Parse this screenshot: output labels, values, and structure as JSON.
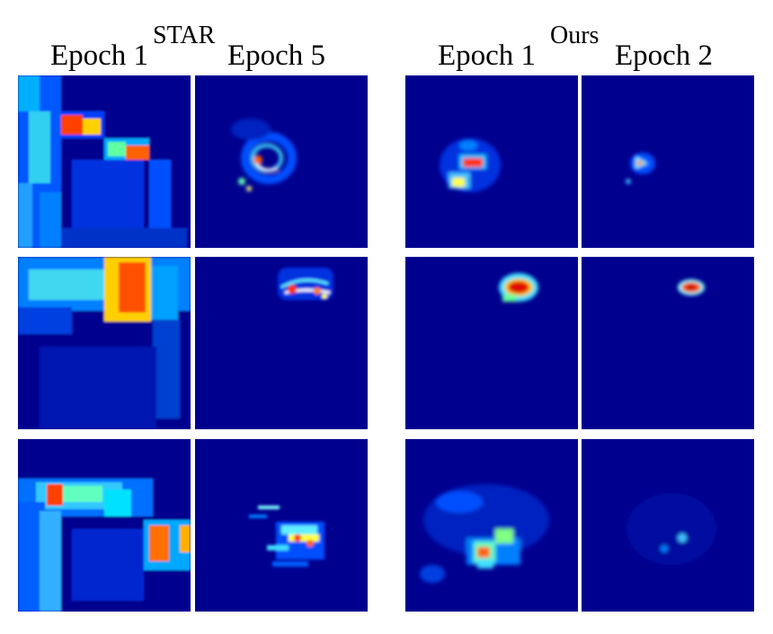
{
  "groups": [
    {
      "label": "STAR",
      "columns": [
        "Epoch 1",
        "Epoch 5"
      ]
    },
    {
      "label": "Ours",
      "columns": [
        "Epoch 1",
        "Epoch 2"
      ]
    }
  ],
  "colormap": {
    "name": "jet",
    "background": "#00008f",
    "stops": [
      "#00008f",
      "#0000ff",
      "#0080ff",
      "#00ffff",
      "#80ff80",
      "#ffff00",
      "#ff8000",
      "#ff0000",
      "#800000"
    ]
  },
  "heatmaps": [
    {
      "row": 1,
      "group": "STAR",
      "epoch": "Epoch 1",
      "pattern": "blocky-left-column-with-hot-top"
    },
    {
      "row": 1,
      "group": "STAR",
      "epoch": "Epoch 5",
      "pattern": "ring-focus-center"
    },
    {
      "row": 1,
      "group": "Ours",
      "epoch": "Epoch 1",
      "pattern": "compact-left-center"
    },
    {
      "row": 1,
      "group": "Ours",
      "epoch": "Epoch 2",
      "pattern": "small-spot-left-center"
    },
    {
      "row": 2,
      "group": "STAR",
      "epoch": "Epoch 1",
      "pattern": "wide-top-band-hot-right"
    },
    {
      "row": 2,
      "group": "STAR",
      "epoch": "Epoch 5",
      "pattern": "top-right-streaks"
    },
    {
      "row": 2,
      "group": "Ours",
      "epoch": "Epoch 1",
      "pattern": "hot-blob-top-center"
    },
    {
      "row": 2,
      "group": "Ours",
      "epoch": "Epoch 2",
      "pattern": "small-hot-blob-top-right"
    },
    {
      "row": 3,
      "group": "STAR",
      "epoch": "Epoch 1",
      "pattern": "blocky-frame-hot-right"
    },
    {
      "row": 3,
      "group": "STAR",
      "epoch": "Epoch 5",
      "pattern": "scattered-center-right"
    },
    {
      "row": 3,
      "group": "Ours",
      "epoch": "Epoch 1",
      "pattern": "diffuse-lower-center"
    },
    {
      "row": 3,
      "group": "Ours",
      "epoch": "Epoch 2",
      "pattern": "faint-tiny-spot"
    }
  ]
}
